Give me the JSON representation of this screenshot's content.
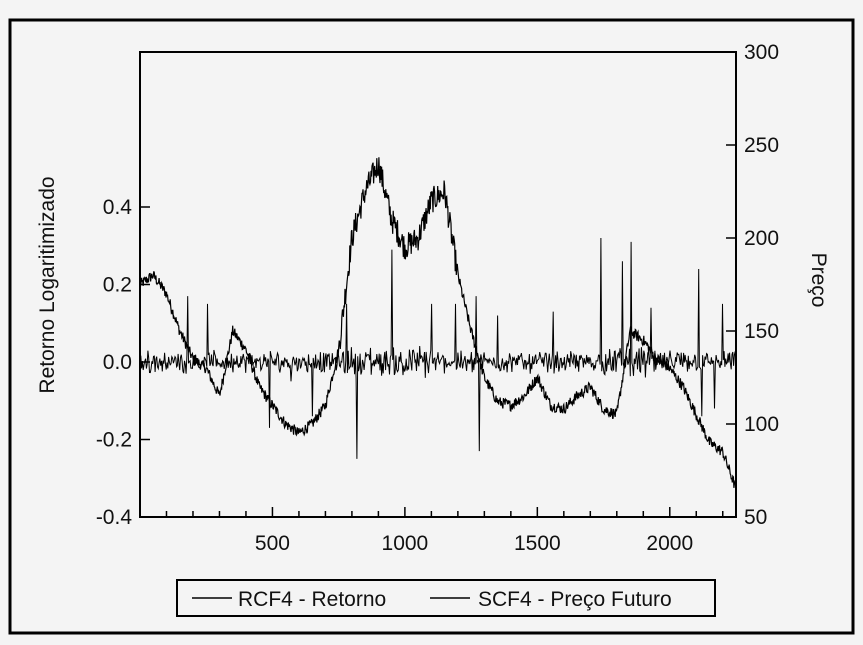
{
  "chart_data": {
    "type": "line",
    "title": "",
    "xlabel": "",
    "xlim": [
      0,
      2250
    ],
    "x_ticks": [
      "500",
      "1000",
      "1500",
      "2000"
    ],
    "y_left": {
      "label": "Retorno Logaritimizado",
      "ylim": [
        -0.4,
        0.8
      ],
      "ticks": [
        "0.4",
        "0.2",
        "0.0",
        "-0.2",
        "-0.4"
      ]
    },
    "y_right": {
      "label": "Preço",
      "ylim": [
        50,
        300
      ],
      "ticks": [
        "300",
        "250",
        "200",
        "150",
        "100",
        "50"
      ]
    },
    "legend": {
      "position": "bottom-center",
      "entries": [
        "RCF4 - Retorno",
        "SCF4 - Preço Futuro"
      ]
    },
    "series": [
      {
        "name": "SCF4 - Preço Futuro",
        "axis": "right",
        "x": [
          0,
          50,
          100,
          150,
          200,
          250,
          300,
          350,
          400,
          450,
          500,
          550,
          600,
          650,
          700,
          750,
          800,
          850,
          900,
          950,
          1000,
          1050,
          1100,
          1150,
          1200,
          1250,
          1300,
          1350,
          1400,
          1450,
          1500,
          1550,
          1600,
          1650,
          1700,
          1750,
          1800,
          1850,
          1900,
          1950,
          2000,
          2050,
          2100,
          2150,
          2200,
          2250
        ],
        "values": [
          175,
          180,
          170,
          150,
          135,
          130,
          115,
          150,
          140,
          120,
          110,
          100,
          95,
          100,
          110,
          140,
          200,
          225,
          240,
          210,
          195,
          200,
          220,
          225,
          180,
          150,
          125,
          112,
          110,
          115,
          125,
          110,
          108,
          115,
          120,
          108,
          105,
          150,
          145,
          135,
          130,
          120,
          105,
          90,
          85,
          65
        ]
      },
      {
        "name": "RCF4 - Retorno",
        "axis": "left",
        "spikes": [
          {
            "x": 180,
            "y": 0.17
          },
          {
            "x": 255,
            "y": 0.15
          },
          {
            "x": 490,
            "y": -0.17
          },
          {
            "x": 570,
            "y": -0.05
          },
          {
            "x": 650,
            "y": -0.14
          },
          {
            "x": 780,
            "y": 0.15
          },
          {
            "x": 820,
            "y": -0.25
          },
          {
            "x": 950,
            "y": 0.29
          },
          {
            "x": 1100,
            "y": 0.15
          },
          {
            "x": 1190,
            "y": 0.15
          },
          {
            "x": 1270,
            "y": 0.17
          },
          {
            "x": 1280,
            "y": -0.23
          },
          {
            "x": 1350,
            "y": 0.12
          },
          {
            "x": 1560,
            "y": 0.13
          },
          {
            "x": 1740,
            "y": 0.32
          },
          {
            "x": 1820,
            "y": 0.26
          },
          {
            "x": 1855,
            "y": 0.31
          },
          {
            "x": 1930,
            "y": 0.14
          },
          {
            "x": 2110,
            "y": 0.24
          },
          {
            "x": 2120,
            "y": -0.14
          },
          {
            "x": 2170,
            "y": -0.12
          },
          {
            "x": 2200,
            "y": 0.15
          }
        ]
      }
    ]
  }
}
